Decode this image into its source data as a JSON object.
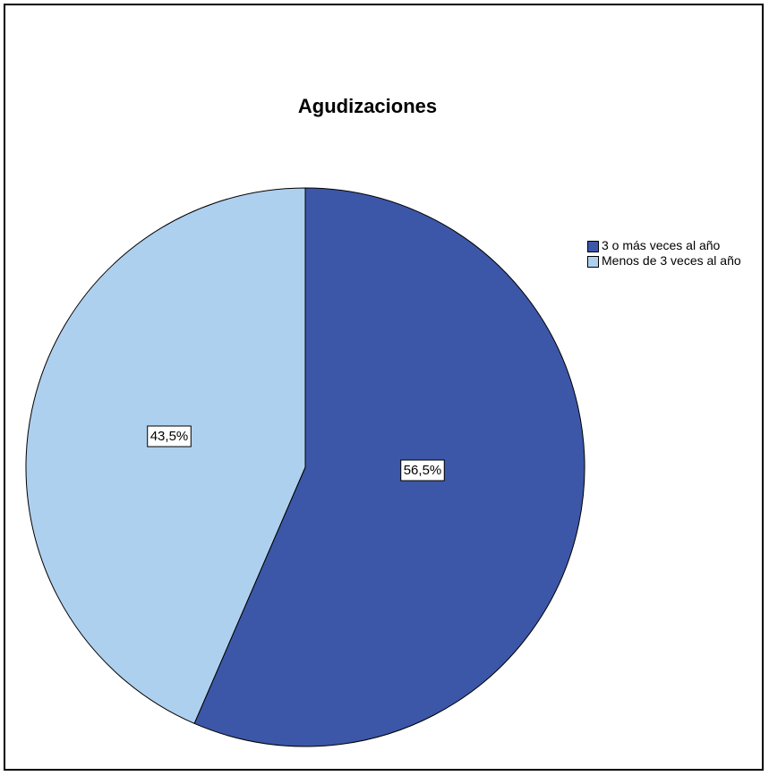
{
  "chart_data": {
    "type": "pie",
    "title": "Agudizaciones",
    "slices": [
      {
        "label": "3 o más veces al año",
        "value": 56.5,
        "value_label": "56,5%",
        "color": "#3c57a8"
      },
      {
        "label": "Menos de 3 veces al año",
        "value": 43.5,
        "value_label": "43,5%",
        "color": "#aed0ef"
      }
    ],
    "legend_position": "right",
    "start_angle_deg": 0,
    "direction": "clockwise"
  }
}
